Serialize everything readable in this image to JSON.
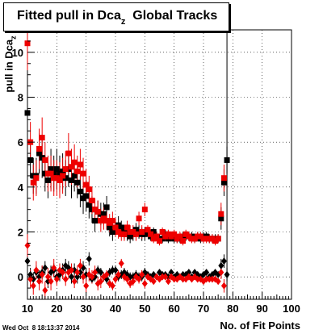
{
  "title": {
    "main": "Fitted pull in Dca",
    "sub": "z",
    "suffix": "  Global Tracks"
  },
  "ylabel": {
    "main": "pull in Dca",
    "sub": "z"
  },
  "xlabel": "No. of Fit Points",
  "timestamp": "Wed Oct  8 18:13:37 2014",
  "chart_data": {
    "type": "scatter",
    "xlim": [
      10,
      100
    ],
    "ylim": [
      -1,
      11
    ],
    "x_ticks": [
      10,
      20,
      30,
      40,
      50,
      60,
      70,
      80,
      90,
      100
    ],
    "y_ticks": [
      0,
      2,
      4,
      6,
      8,
      10
    ],
    "grid": true,
    "colors": {
      "black": "#000000",
      "red": "#ee0000"
    },
    "vertical_line_x": 78,
    "series": [
      {
        "color": "black",
        "marker": "square",
        "x": [
          10,
          11,
          12,
          13,
          14,
          15,
          16,
          17,
          18,
          19,
          20,
          21,
          22,
          23,
          24,
          25,
          26,
          27,
          28,
          29,
          30,
          31,
          32,
          33,
          34,
          35,
          36,
          37,
          38,
          39,
          40,
          41,
          42,
          43,
          44,
          45,
          46,
          47,
          48,
          49,
          50,
          51,
          52,
          53,
          54,
          55,
          56,
          57,
          58,
          59,
          60,
          61,
          62,
          63,
          64,
          65,
          66,
          67,
          68,
          69,
          70,
          71,
          72,
          73,
          74,
          75,
          76,
          77,
          78
        ],
        "y": [
          7.3,
          5.2,
          4.5,
          4.5,
          5.5,
          5.3,
          4.6,
          4.3,
          4.8,
          4.6,
          4.8,
          4.6,
          4.7,
          4.4,
          4.8,
          4.3,
          4.5,
          4.2,
          3.8,
          3.5,
          3.6,
          3.2,
          3.0,
          2.5,
          2.9,
          2.8,
          2.8,
          3.1,
          2.2,
          2.0,
          2.2,
          2.3,
          2.2,
          2.0,
          1.9,
          1.8,
          1.9,
          2.1,
          2.0,
          1.9,
          1.9,
          2.0,
          1.8,
          2.0,
          1.8,
          1.7,
          1.7,
          1.9,
          1.7,
          1.8,
          1.7,
          1.7,
          1.7,
          1.8,
          1.8,
          1.8,
          1.8,
          1.7,
          1.8,
          1.7,
          1.8,
          1.8,
          1.7,
          1.7,
          1.7,
          1.7,
          2.6,
          4.2,
          5.2
        ],
        "err": [
          1.0,
          0.8,
          0.8,
          0.8,
          0.9,
          0.9,
          0.8,
          0.8,
          0.9,
          0.8,
          0.9,
          0.8,
          0.8,
          0.8,
          0.8,
          0.8,
          0.7,
          0.7,
          0.7,
          0.7,
          0.7,
          0.6,
          0.6,
          0.5,
          0.5,
          0.5,
          0.5,
          0.5,
          0.4,
          0.4,
          0.4,
          0.4,
          0.3,
          0.3,
          0.3,
          0.3,
          0.3,
          0.3,
          0.3,
          0.3,
          0.3,
          0.2,
          0.2,
          0.2,
          0.2,
          0.2,
          0.2,
          0.2,
          0.2,
          0.2,
          0.2,
          0.2,
          0.2,
          0.2,
          0.2,
          0.2,
          0.2,
          0.2,
          0.2,
          0.2,
          0.2,
          0.2,
          0.2,
          0.2,
          0.2,
          0.2,
          0.5,
          0.6,
          0.6
        ]
      },
      {
        "color": "red",
        "marker": "square",
        "x": [
          10,
          11,
          12,
          13,
          14,
          15,
          16,
          17,
          18,
          19,
          20,
          21,
          22,
          23,
          24,
          25,
          26,
          27,
          28,
          29,
          30,
          31,
          32,
          33,
          34,
          35,
          36,
          37,
          38,
          39,
          40,
          41,
          42,
          43,
          44,
          45,
          46,
          47,
          48,
          49,
          50,
          51,
          52,
          53,
          54,
          55,
          56,
          57,
          58,
          59,
          60,
          61,
          62,
          63,
          64,
          65,
          66,
          67,
          68,
          69,
          70,
          71,
          72,
          73,
          74,
          75,
          76,
          77
        ],
        "y": [
          10.4,
          6.0,
          4.2,
          4.4,
          5.7,
          6.2,
          5.2,
          4.6,
          4.6,
          4.4,
          4.4,
          4.3,
          4.5,
          4.8,
          5.5,
          4.9,
          5.1,
          4.7,
          5.0,
          4.6,
          4.1,
          3.9,
          3.4,
          3.0,
          2.9,
          2.5,
          2.6,
          2.5,
          2.4,
          2.5,
          2.2,
          2.0,
          1.9,
          1.9,
          2.2,
          2.0,
          2.0,
          1.9,
          2.6,
          2.0,
          3.0,
          2.1,
          1.9,
          1.7,
          1.8,
          1.6,
          2.0,
          1.8,
          1.9,
          1.8,
          1.9,
          1.7,
          1.8,
          1.6,
          1.9,
          1.8,
          1.7,
          1.7,
          1.8,
          1.8,
          1.7,
          1.7,
          1.7,
          1.7,
          1.6,
          1.7,
          2.8,
          4.4
        ],
        "err": [
          1.2,
          0.9,
          0.8,
          0.8,
          0.9,
          0.9,
          0.8,
          0.8,
          0.8,
          0.8,
          0.8,
          0.8,
          0.8,
          0.8,
          0.9,
          0.8,
          0.8,
          0.7,
          0.7,
          0.7,
          0.7,
          0.6,
          0.6,
          0.5,
          0.5,
          0.5,
          0.5,
          0.4,
          0.4,
          0.4,
          0.4,
          0.3,
          0.3,
          0.3,
          0.3,
          0.3,
          0.3,
          0.3,
          0.3,
          0.3,
          0.3,
          0.2,
          0.2,
          0.2,
          0.2,
          0.2,
          0.2,
          0.2,
          0.2,
          0.2,
          0.2,
          0.2,
          0.2,
          0.2,
          0.2,
          0.2,
          0.2,
          0.2,
          0.2,
          0.2,
          0.2,
          0.2,
          0.2,
          0.2,
          0.2,
          0.2,
          0.5,
          0.6
        ]
      },
      {
        "color": "black",
        "marker": "diamond",
        "x": [
          10,
          11,
          12,
          13,
          14,
          15,
          16,
          17,
          18,
          19,
          20,
          21,
          22,
          23,
          24,
          25,
          26,
          27,
          28,
          29,
          30,
          31,
          32,
          33,
          34,
          35,
          36,
          37,
          38,
          39,
          40,
          41,
          42,
          43,
          44,
          45,
          46,
          47,
          48,
          49,
          50,
          51,
          52,
          53,
          54,
          55,
          56,
          57,
          58,
          59,
          60,
          61,
          62,
          63,
          64,
          65,
          66,
          67,
          68,
          69,
          70,
          71,
          72,
          73,
          74,
          75,
          76,
          77,
          78
        ],
        "y": [
          0.7,
          0.1,
          -0.1,
          0.2,
          0.0,
          0.2,
          0.4,
          -0.2,
          0.2,
          0.3,
          0.0,
          0.1,
          0.3,
          0.5,
          0.4,
          0.0,
          0.3,
          0.0,
          0.2,
          0.4,
          0.1,
          0.8,
          -0.1,
          0.0,
          0.3,
          0.2,
          0.0,
          -0.1,
          0.2,
          0.3,
          0.3,
          0.0,
          0.1,
          0.2,
          0.1,
          0.0,
          0.0,
          0.1,
          0.0,
          0.0,
          0.2,
          0.1,
          0.0,
          0.1,
          0.0,
          0.2,
          0.1,
          0.1,
          0.0,
          0.2,
          0.0,
          0.1,
          0.0,
          0.1,
          0.1,
          0.2,
          0.0,
          0.2,
          0.1,
          0.0,
          0.1,
          0.2,
          0.0,
          0.1,
          0.2,
          0.1,
          0.5,
          0.7,
          0.1
        ],
        "err": [
          0.4,
          0.3,
          0.3,
          0.3,
          0.3,
          0.3,
          0.3,
          0.3,
          0.3,
          0.3,
          0.3,
          0.3,
          0.3,
          0.3,
          0.3,
          0.3,
          0.3,
          0.3,
          0.3,
          0.3,
          0.3,
          0.3,
          0.2,
          0.2,
          0.2,
          0.2,
          0.2,
          0.2,
          0.2,
          0.2,
          0.2,
          0.2,
          0.2,
          0.2,
          0.2,
          0.2,
          0.2,
          0.2,
          0.2,
          0.2,
          0.2,
          0.1,
          0.1,
          0.1,
          0.1,
          0.1,
          0.1,
          0.1,
          0.1,
          0.1,
          0.1,
          0.1,
          0.1,
          0.1,
          0.1,
          0.1,
          0.1,
          0.1,
          0.1,
          0.1,
          0.1,
          0.1,
          0.1,
          0.1,
          0.1,
          0.1,
          0.3,
          0.3,
          0.3
        ]
      },
      {
        "color": "red",
        "marker": "diamond",
        "x": [
          10,
          11,
          12,
          13,
          14,
          15,
          16,
          17,
          18,
          19,
          20,
          21,
          22,
          23,
          24,
          25,
          26,
          27,
          28,
          29,
          30,
          31,
          32,
          33,
          34,
          35,
          36,
          37,
          38,
          39,
          40,
          41,
          42,
          43,
          44,
          45,
          46,
          47,
          48,
          49,
          50,
          51,
          52,
          53,
          54,
          55,
          56,
          57,
          58,
          59,
          60,
          61,
          62,
          63,
          64,
          65,
          66,
          67,
          68,
          69,
          70,
          71,
          72,
          73,
          74,
          75,
          76,
          77
        ],
        "y": [
          1.4,
          -0.1,
          -0.4,
          0.3,
          -0.2,
          0.1,
          -0.6,
          0.0,
          -0.2,
          0.4,
          -0.1,
          0.3,
          0.2,
          -0.1,
          0.2,
          0.3,
          -0.2,
          0.2,
          0.5,
          0.0,
          -0.4,
          0.1,
          0.0,
          0.2,
          -0.3,
          -0.2,
          0.0,
          0.1,
          -0.3,
          -0.4,
          -0.1,
          0.1,
          0.6,
          0.0,
          -0.1,
          -0.3,
          -0.2,
          0.0,
          -0.1,
          0.1,
          -0.3,
          0.0,
          -0.1,
          -0.2,
          0.0,
          -0.1,
          0.0,
          0.0,
          -0.2,
          0.0,
          -0.1,
          -0.1,
          0.0,
          -0.1,
          -0.1,
          0.0,
          -0.1,
          0.0,
          -0.1,
          -0.1,
          -0.2,
          -0.1,
          -0.1,
          -0.1,
          -0.1,
          -0.2,
          0.2,
          -0.4
        ],
        "err": [
          0.5,
          0.4,
          0.4,
          0.4,
          0.4,
          0.4,
          0.4,
          0.4,
          0.4,
          0.4,
          0.3,
          0.3,
          0.3,
          0.3,
          0.3,
          0.3,
          0.3,
          0.3,
          0.3,
          0.3,
          0.3,
          0.3,
          0.3,
          0.3,
          0.3,
          0.3,
          0.2,
          0.2,
          0.2,
          0.2,
          0.2,
          0.2,
          0.2,
          0.2,
          0.2,
          0.2,
          0.2,
          0.2,
          0.2,
          0.2,
          0.2,
          0.1,
          0.1,
          0.1,
          0.1,
          0.1,
          0.1,
          0.1,
          0.1,
          0.1,
          0.1,
          0.1,
          0.1,
          0.1,
          0.1,
          0.1,
          0.1,
          0.1,
          0.1,
          0.1,
          0.1,
          0.1,
          0.1,
          0.1,
          0.1,
          0.1,
          0.3,
          0.3
        ]
      }
    ]
  }
}
